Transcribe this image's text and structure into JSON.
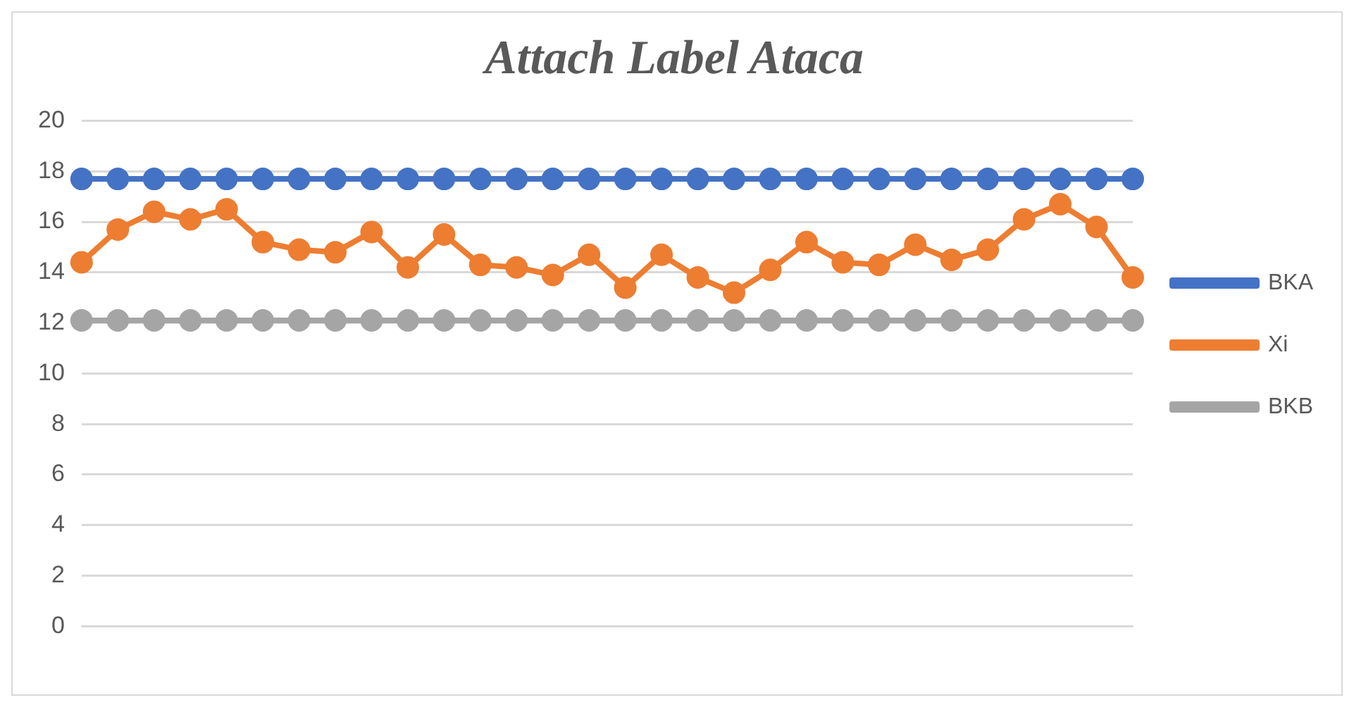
{
  "chart_data": {
    "type": "line",
    "title": "Attach Label Ataca",
    "categories": [
      null,
      null,
      null,
      null,
      null,
      null,
      null,
      null,
      null,
      null,
      null,
      null,
      null,
      null,
      null,
      null,
      null,
      null,
      null,
      null,
      null,
      null,
      null,
      null,
      null,
      null,
      null,
      null,
      null,
      null
    ],
    "series": [
      {
        "name": "BKA",
        "color": "#4472c4",
        "values": [
          17.7,
          17.7,
          17.7,
          17.7,
          17.7,
          17.7,
          17.7,
          17.7,
          17.7,
          17.7,
          17.7,
          17.7,
          17.7,
          17.7,
          17.7,
          17.7,
          17.7,
          17.7,
          17.7,
          17.7,
          17.7,
          17.7,
          17.7,
          17.7,
          17.7,
          17.7,
          17.7,
          17.7,
          17.7,
          17.7
        ]
      },
      {
        "name": "Xi",
        "color": "#ed7d31",
        "values": [
          14.4,
          15.7,
          16.4,
          16.1,
          16.5,
          15.2,
          14.9,
          14.8,
          15.6,
          14.2,
          15.5,
          14.3,
          14.2,
          13.9,
          14.7,
          13.4,
          14.7,
          13.8,
          13.2,
          14.1,
          15.2,
          14.4,
          14.3,
          15.1,
          14.5,
          14.9,
          16.1,
          16.7,
          15.8,
          13.8
        ]
      },
      {
        "name": "BKB",
        "color": "#a5a5a5",
        "values": [
          12.1,
          12.1,
          12.1,
          12.1,
          12.1,
          12.1,
          12.1,
          12.1,
          12.1,
          12.1,
          12.1,
          12.1,
          12.1,
          12.1,
          12.1,
          12.1,
          12.1,
          12.1,
          12.1,
          12.1,
          12.1,
          12.1,
          12.1,
          12.1,
          12.1,
          12.1,
          12.1,
          12.1,
          12.1,
          12.1
        ]
      }
    ],
    "ylim": [
      0,
      20
    ],
    "yticks": [
      0,
      2,
      4,
      6,
      8,
      10,
      12,
      14,
      16,
      18,
      20
    ],
    "grid": "y",
    "legend": "right",
    "marker": "circle",
    "line_style": "solid"
  }
}
